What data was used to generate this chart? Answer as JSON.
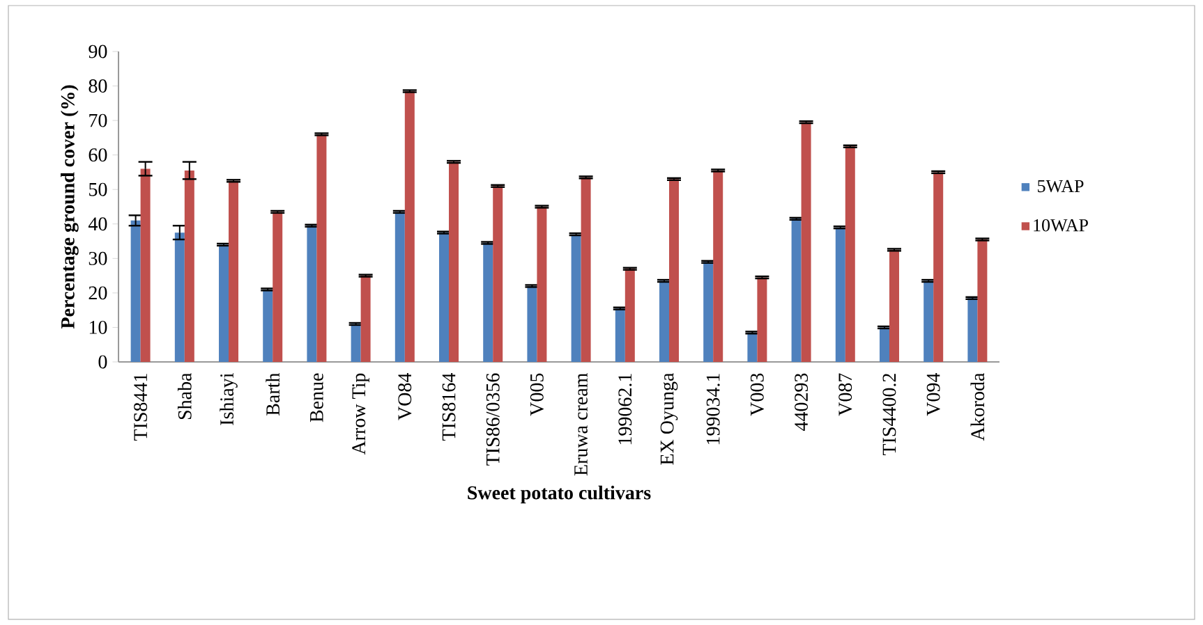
{
  "chart_data": {
    "type": "bar",
    "xlabel": "Sweet potato cultivars",
    "ylabel": "Percentage ground cover (%)",
    "categories": [
      "TIS8441",
      "Shaba",
      "Ishiayi",
      "Barth",
      "Benue",
      "Arrow Tip",
      "VO84",
      "TIS8164",
      "TIS86/0356",
      "V005",
      "Eruwa cream",
      "199062.1",
      "EX Oyunga",
      "199034.1",
      "V003",
      "440293",
      "V087",
      "TIS4400.2",
      "V094",
      "Akoroda"
    ],
    "series": [
      {
        "name": "5WAP",
        "color": "#4f81bd",
        "values": [
          41,
          37.5,
          34,
          21,
          39.5,
          11,
          43.5,
          37.5,
          34.5,
          22,
          37,
          15.5,
          23.5,
          29,
          8.5,
          41.5,
          39,
          10,
          23.5,
          18.5
        ],
        "errors": [
          1.5,
          2,
          0.3,
          0.3,
          0.3,
          0.3,
          0.3,
          0.3,
          0.3,
          0.3,
          0.3,
          0.3,
          0.3,
          0.3,
          0.3,
          0.3,
          0.3,
          0.3,
          0.3,
          0.3
        ]
      },
      {
        "name": "10WAP",
        "color": "#c0504d",
        "values": [
          56,
          55.5,
          52.5,
          43.5,
          66,
          25,
          78.5,
          58,
          51,
          45,
          53.5,
          27,
          53,
          55.5,
          24.5,
          69.5,
          62.5,
          32.5,
          55,
          35.5
        ],
        "errors": [
          2,
          2.5,
          0.3,
          0.3,
          0.3,
          0.3,
          0.3,
          0.3,
          0.3,
          0.3,
          0.3,
          0.3,
          0.3,
          0.3,
          0.3,
          0.3,
          0.3,
          0.3,
          0.3,
          0.3
        ]
      }
    ],
    "ylim": [
      0,
      90
    ],
    "yticks": [
      0,
      10,
      20,
      30,
      40,
      50,
      60,
      70,
      80,
      90
    ],
    "grid": false,
    "legend": "right"
  }
}
